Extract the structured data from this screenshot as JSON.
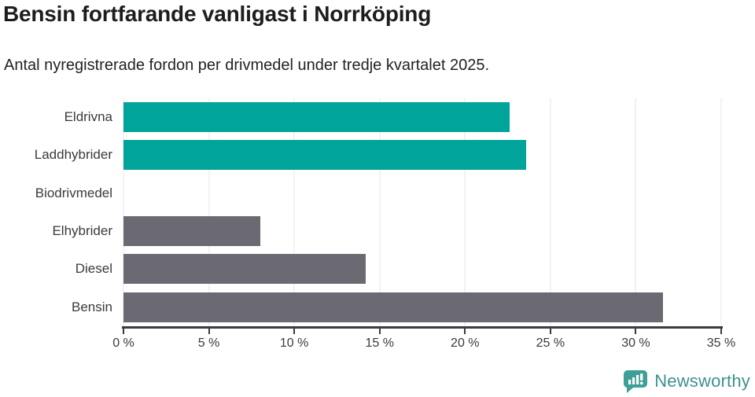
{
  "header": {
    "title": "Bensin fortfarande vanligast i Norrköping",
    "subtitle": "Antal nyregistrerade fordon per drivmedel under tredje kvartalet 2025."
  },
  "chart_data": {
    "type": "bar",
    "orientation": "horizontal",
    "title": "Bensin fortfarande vanligast i Norrköping",
    "subtitle": "Antal nyregistrerade fordon per drivmedel under tredje kvartalet 2025.",
    "categories": [
      "Eldrivna",
      "Laddhybrider",
      "Biodrivmedel",
      "Elhybrider",
      "Diesel",
      "Bensin"
    ],
    "values": [
      22.6,
      23.6,
      0,
      8,
      14.2,
      31.6
    ],
    "unit": "%",
    "bar_colors": [
      "#00a49b",
      "#00a49b",
      "#00a49b",
      "#6b6a72",
      "#6b6a72",
      "#6b6a72"
    ],
    "xlabel": "",
    "ylabel": "",
    "xlim": [
      0,
      35
    ],
    "x_ticks": [
      0,
      5,
      10,
      15,
      20,
      25,
      30,
      35
    ],
    "x_tick_labels": [
      "0 %",
      "5 %",
      "10 %",
      "15 %",
      "20 %",
      "25 %",
      "30 %",
      "35 %"
    ],
    "grid": true,
    "legend": "none"
  },
  "colors": {
    "teal_bar": "#00a49b",
    "gray_bar": "#6b6a72",
    "gridline": "#e4e4e4",
    "axis": "#3b3b40",
    "title_text": "#1d1d1d",
    "label_text": "#3a3a3a",
    "logo_icon": "#3da096",
    "logo_text": "#3e918c"
  },
  "footer": {
    "brand": "Newsworthy",
    "logo_icon": "bar-chart-speech-bubble-icon"
  }
}
